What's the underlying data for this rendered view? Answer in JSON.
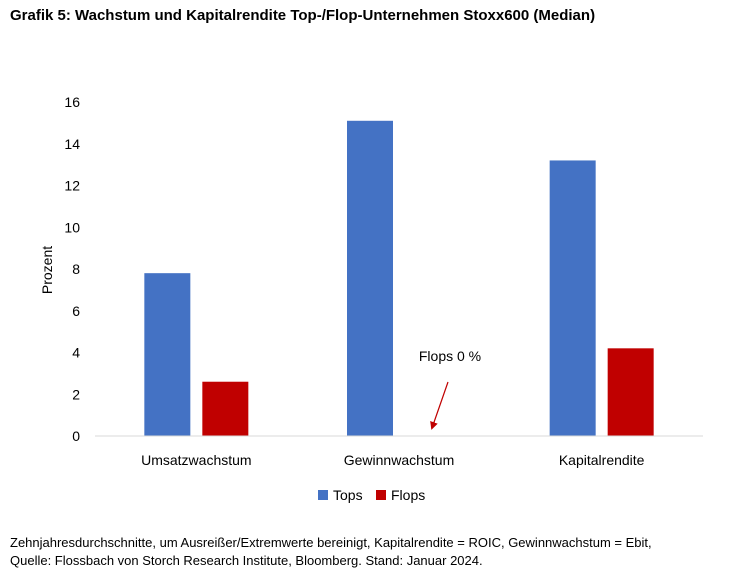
{
  "title": "Grafik 5: Wachstum und Kapitalrendite Top-/Flop-Unternehmen Stoxx600 (Median)",
  "footnote": {
    "line1": "Zehnjahresdurchschnitte, um Ausreißer/Extremwerte bereinigt, Kapitalrendite = ROIC, Gewinnwachstum = Ebit,",
    "line2": "Quelle: Flossbach von Storch Research Institute, Bloomberg. Stand: Januar 2024."
  },
  "chart_data": {
    "type": "bar",
    "categories": [
      "Umsatzwachstum",
      "Gewinnwachstum",
      "Kapitalrendite"
    ],
    "series": [
      {
        "name": "Tops",
        "values": [
          7.8,
          15.1,
          13.2
        ],
        "color": "#4472C4"
      },
      {
        "name": "Flops",
        "values": [
          2.6,
          0,
          4.2
        ],
        "color": "#C00000"
      }
    ],
    "ylabel": "Prozent",
    "xlabel": "",
    "ylim": [
      0,
      16
    ],
    "yticks": [
      0,
      2,
      4,
      6,
      8,
      10,
      12,
      14,
      16
    ],
    "grid": false,
    "legend": "bottom",
    "annotation": {
      "text": "Flops 0 %",
      "arrow_color": "#C00000",
      "category": "Gewinnwachstum",
      "series": "Flops"
    }
  }
}
